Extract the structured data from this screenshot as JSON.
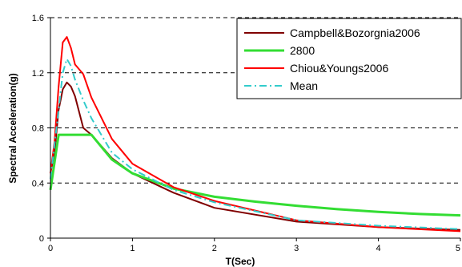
{
  "chart_data": {
    "type": "line",
    "title": "",
    "xlabel": "T(Sec)",
    "ylabel": "Spectral Acceleration(g)",
    "xlim": [
      0,
      5
    ],
    "ylim": [
      0,
      1.6
    ],
    "xticks": [
      "0",
      "1",
      "2",
      "3",
      "4",
      "5"
    ],
    "yticks": [
      "0",
      "0.4",
      "0.8",
      "1.2",
      "1.6"
    ],
    "grid": "horizontal-dashed",
    "legend_position": "top-right",
    "series": [
      {
        "name": "Campbell&Bozorgnia2006",
        "color": "#800000",
        "dash": "solid",
        "x": [
          0,
          0.05,
          0.1,
          0.15,
          0.2,
          0.25,
          0.3,
          0.4,
          0.5,
          0.75,
          1.0,
          1.5,
          2.0,
          3.0,
          4.0,
          5.0
        ],
        "y": [
          0.47,
          0.62,
          0.93,
          1.08,
          1.13,
          1.1,
          1.03,
          0.8,
          0.75,
          0.58,
          0.47,
          0.33,
          0.22,
          0.12,
          0.08,
          0.06
        ]
      },
      {
        "name": "2800",
        "color": "#33dd33",
        "dash": "solid",
        "x": [
          0,
          0.1,
          0.5,
          0.75,
          1.0,
          1.5,
          2.0,
          2.5,
          3.0,
          3.5,
          4.0,
          4.5,
          5.0
        ],
        "y": [
          0.35,
          0.75,
          0.75,
          0.57,
          0.47,
          0.36,
          0.3,
          0.265,
          0.235,
          0.21,
          0.19,
          0.175,
          0.165
        ]
      },
      {
        "name": "Chiou&Youngs2006",
        "color": "#ff0000",
        "dash": "solid",
        "x": [
          0,
          0.05,
          0.1,
          0.15,
          0.2,
          0.25,
          0.3,
          0.4,
          0.5,
          0.75,
          1.0,
          1.5,
          2.0,
          3.0,
          4.0,
          5.0
        ],
        "y": [
          0.47,
          0.7,
          1.1,
          1.42,
          1.46,
          1.38,
          1.26,
          1.19,
          1.02,
          0.72,
          0.54,
          0.37,
          0.27,
          0.13,
          0.08,
          0.05
        ]
      },
      {
        "name": "Mean",
        "color": "#33cccc",
        "dash": "dashdot",
        "x": [
          0,
          0.05,
          0.1,
          0.15,
          0.2,
          0.25,
          0.3,
          0.4,
          0.5,
          0.75,
          1.0,
          1.5,
          2.0,
          3.0,
          4.0,
          5.0
        ],
        "y": [
          0.43,
          0.68,
          0.93,
          1.2,
          1.3,
          1.25,
          1.15,
          1.0,
          0.87,
          0.62,
          0.5,
          0.35,
          0.26,
          0.13,
          0.09,
          0.065
        ]
      }
    ]
  }
}
